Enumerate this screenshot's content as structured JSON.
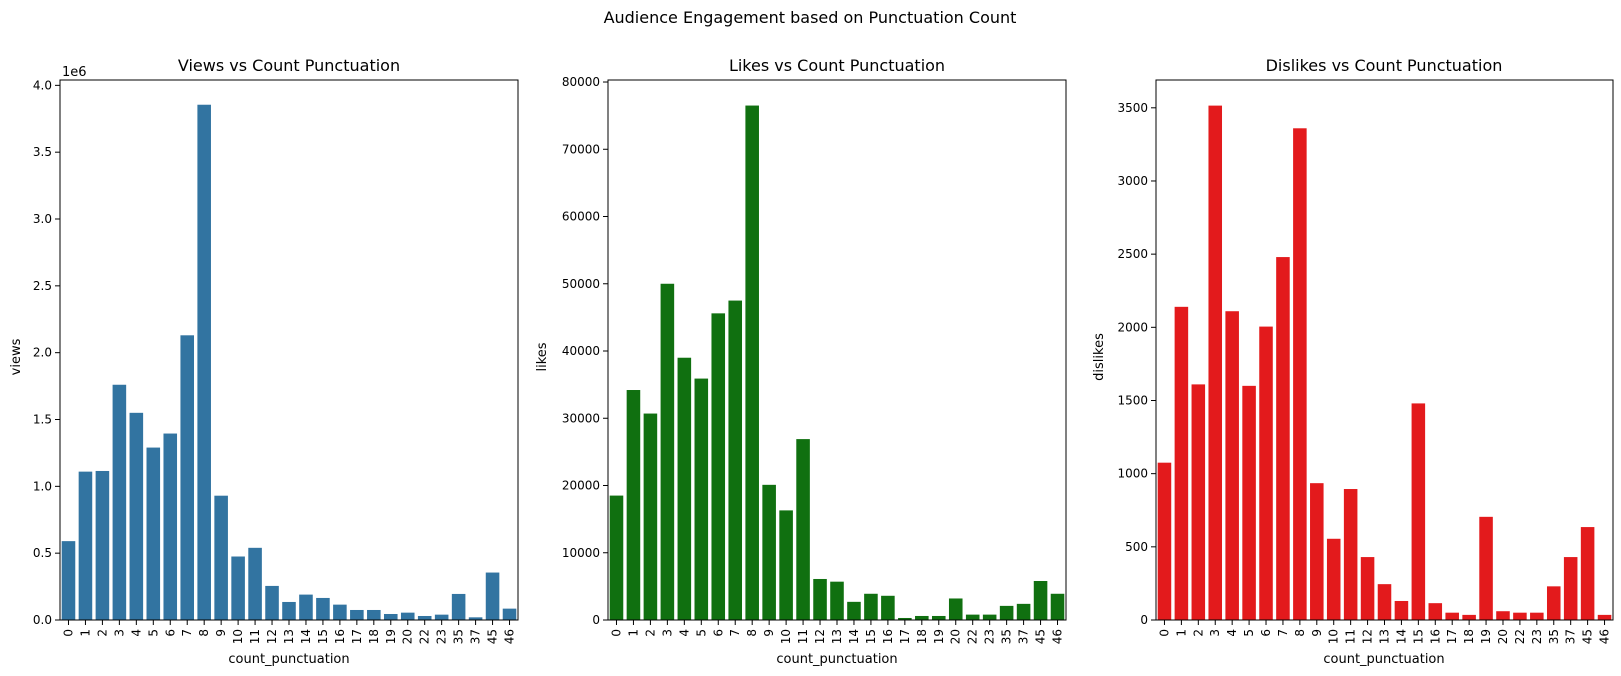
{
  "suptitle": "Audience Engagement based on Punctuation Count",
  "chart_data": [
    {
      "type": "bar",
      "title": "Views vs Count Punctuation",
      "xlabel": "count_punctuation",
      "ylabel": "views",
      "offset_label": "1e6",
      "color": "#3274a1",
      "categories": [
        "0",
        "1",
        "2",
        "3",
        "4",
        "5",
        "6",
        "7",
        "8",
        "9",
        "10",
        "11",
        "12",
        "13",
        "14",
        "15",
        "16",
        "17",
        "18",
        "19",
        "20",
        "22",
        "23",
        "35",
        "37",
        "45",
        "46"
      ],
      "values": [
        590000,
        1110000,
        1115000,
        1760000,
        1550000,
        1290000,
        1395000,
        2130000,
        3855000,
        930000,
        475000,
        540000,
        255000,
        135000,
        190000,
        165000,
        115000,
        75000,
        75000,
        45000,
        55000,
        30000,
        40000,
        195000,
        20000,
        355000,
        85000
      ],
      "ylim": [
        0,
        4040000
      ],
      "yticks": [
        0,
        500000,
        1000000,
        1500000,
        2000000,
        2500000,
        3000000,
        3500000,
        4000000
      ],
      "ytick_labels": [
        "0.0",
        "0.5",
        "1.0",
        "1.5",
        "2.0",
        "2.5",
        "3.0",
        "3.5",
        "4.0"
      ]
    },
    {
      "type": "bar",
      "title": "Likes vs Count Punctuation",
      "xlabel": "count_punctuation",
      "ylabel": "likes",
      "color": "#107010",
      "categories": [
        "0",
        "1",
        "2",
        "3",
        "4",
        "5",
        "6",
        "7",
        "8",
        "9",
        "10",
        "11",
        "12",
        "13",
        "14",
        "15",
        "16",
        "17",
        "18",
        "19",
        "20",
        "22",
        "23",
        "35",
        "37",
        "45",
        "46"
      ],
      "values": [
        18500,
        34200,
        30700,
        50000,
        39000,
        35900,
        45600,
        47500,
        76500,
        20100,
        16300,
        26900,
        6100,
        5700,
        2700,
        3900,
        3600,
        300,
        600,
        600,
        3200,
        800,
        800,
        2100,
        2400,
        5800,
        3900
      ],
      "ylim": [
        0,
        80300
      ],
      "yticks": [
        0,
        10000,
        20000,
        30000,
        40000,
        50000,
        60000,
        70000,
        80000
      ],
      "ytick_labels": [
        "0",
        "10000",
        "20000",
        "30000",
        "40000",
        "50000",
        "60000",
        "70000",
        "80000"
      ]
    },
    {
      "type": "bar",
      "title": "Dislikes vs Count Punctuation",
      "xlabel": "",
      "ylabel": "dislikes",
      "color": "#e31a1c",
      "categories": [
        "0",
        "1",
        "2",
        "3",
        "4",
        "5",
        "6",
        "7",
        "8",
        "9",
        "10",
        "11",
        "12",
        "13",
        "14",
        "15",
        "16",
        "17",
        "18",
        "19",
        "20",
        "22",
        "23",
        "35",
        "37",
        "45",
        "46"
      ],
      "values": [
        1075,
        2140,
        1610,
        3515,
        2110,
        1600,
        2005,
        2480,
        3360,
        935,
        555,
        895,
        430,
        245,
        130,
        1480,
        115,
        50,
        35,
        705,
        60,
        50,
        50,
        230,
        430,
        635,
        35
      ],
      "ylim": [
        0,
        3690
      ],
      "yticks": [
        0,
        500,
        1000,
        1500,
        2000,
        2500,
        3000,
        3500
      ],
      "ytick_labels": [
        "0",
        "500",
        "1000",
        "1500",
        "2000",
        "2500",
        "3000",
        "3500"
      ],
      "extra_xlabel": "count_punctuation"
    }
  ]
}
